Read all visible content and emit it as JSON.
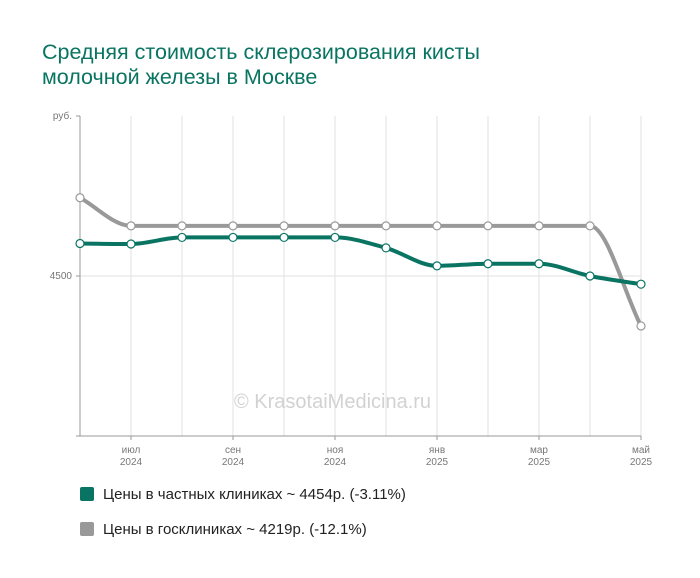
{
  "chart_data": {
    "type": "line",
    "title_lines": [
      "Средняя стоимость склерозирования кисты",
      "молочной железы в Москве"
    ],
    "y_unit": "руб.",
    "y_ticks": [
      {
        "label": "4500",
        "value": 4500
      }
    ],
    "ylim": [
      3600,
      5400
    ],
    "grid": true,
    "legend_position": "bottom",
    "x": [
      "2024-06",
      "2024-07",
      "2024-08",
      "2024-09",
      "2024-10",
      "2024-11",
      "2024-12",
      "2025-01",
      "2025-02",
      "2025-03",
      "2025-04",
      "2025-05"
    ],
    "x_tick_labels": [
      {
        "x": "2024-07",
        "month": "июл",
        "year": "2024"
      },
      {
        "x": "2024-09",
        "month": "сен",
        "year": "2024"
      },
      {
        "x": "2024-11",
        "month": "ноя",
        "year": "2024"
      },
      {
        "x": "2025-01",
        "month": "янв",
        "year": "2025"
      },
      {
        "x": "2025-03",
        "month": "мар",
        "year": "2025"
      },
      {
        "x": "2025-05",
        "month": "май",
        "year": "2025"
      }
    ],
    "series": [
      {
        "legend": "Цены в частных клиниках ~ 4454р. (-3.11%)",
        "color": "#0a7462",
        "values": [
          4683,
          4680,
          4717,
          4717,
          4717,
          4717,
          4658,
          4557,
          4569,
          4569,
          4500,
          4454
        ]
      },
      {
        "legend": "Цены в госклиниках ~ 4219р. (-12.1%)",
        "color": "#999999",
        "values": [
          4940,
          4782,
          4782,
          4782,
          4782,
          4782,
          4782,
          4782,
          4782,
          4782,
          4782,
          4219
        ]
      }
    ]
  },
  "watermark": "© KrasotaiMedicina.ru"
}
